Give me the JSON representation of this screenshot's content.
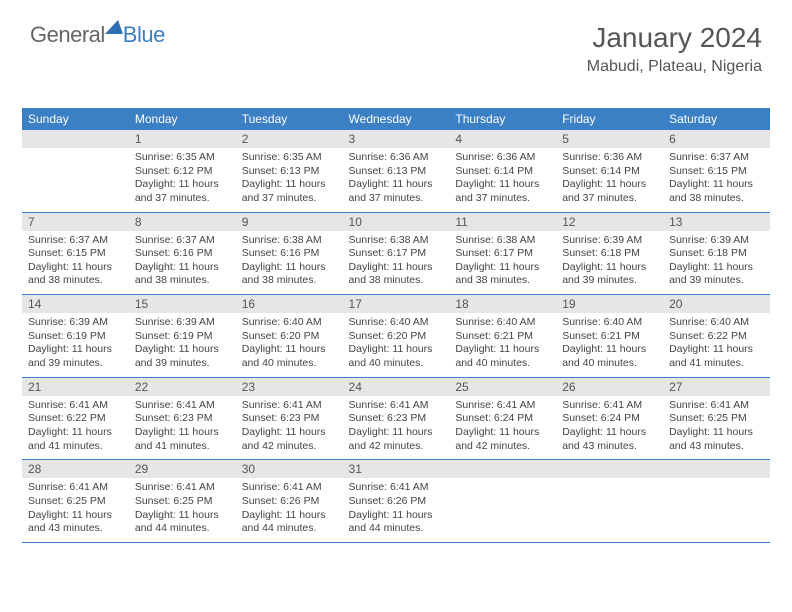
{
  "brand": {
    "part1": "General",
    "part2": "Blue"
  },
  "header": {
    "title": "January 2024",
    "location": "Mabudi, Plateau, Nigeria"
  },
  "colors": {
    "header_bg": "#3b7fc4",
    "header_text": "#ffffff",
    "daynum_bg": "#e6e6e6",
    "rule": "#3b7fc4",
    "text": "#444444",
    "title": "#555555"
  },
  "weekdays": [
    "Sunday",
    "Monday",
    "Tuesday",
    "Wednesday",
    "Thursday",
    "Friday",
    "Saturday"
  ],
  "first_weekday_index": 1,
  "days": [
    {
      "n": 1,
      "sunrise": "6:35 AM",
      "sunset": "6:12 PM",
      "daylight": "11 hours and 37 minutes."
    },
    {
      "n": 2,
      "sunrise": "6:35 AM",
      "sunset": "6:13 PM",
      "daylight": "11 hours and 37 minutes."
    },
    {
      "n": 3,
      "sunrise": "6:36 AM",
      "sunset": "6:13 PM",
      "daylight": "11 hours and 37 minutes."
    },
    {
      "n": 4,
      "sunrise": "6:36 AM",
      "sunset": "6:14 PM",
      "daylight": "11 hours and 37 minutes."
    },
    {
      "n": 5,
      "sunrise": "6:36 AM",
      "sunset": "6:14 PM",
      "daylight": "11 hours and 37 minutes."
    },
    {
      "n": 6,
      "sunrise": "6:37 AM",
      "sunset": "6:15 PM",
      "daylight": "11 hours and 38 minutes."
    },
    {
      "n": 7,
      "sunrise": "6:37 AM",
      "sunset": "6:15 PM",
      "daylight": "11 hours and 38 minutes."
    },
    {
      "n": 8,
      "sunrise": "6:37 AM",
      "sunset": "6:16 PM",
      "daylight": "11 hours and 38 minutes."
    },
    {
      "n": 9,
      "sunrise": "6:38 AM",
      "sunset": "6:16 PM",
      "daylight": "11 hours and 38 minutes."
    },
    {
      "n": 10,
      "sunrise": "6:38 AM",
      "sunset": "6:17 PM",
      "daylight": "11 hours and 38 minutes."
    },
    {
      "n": 11,
      "sunrise": "6:38 AM",
      "sunset": "6:17 PM",
      "daylight": "11 hours and 38 minutes."
    },
    {
      "n": 12,
      "sunrise": "6:39 AM",
      "sunset": "6:18 PM",
      "daylight": "11 hours and 39 minutes."
    },
    {
      "n": 13,
      "sunrise": "6:39 AM",
      "sunset": "6:18 PM",
      "daylight": "11 hours and 39 minutes."
    },
    {
      "n": 14,
      "sunrise": "6:39 AM",
      "sunset": "6:19 PM",
      "daylight": "11 hours and 39 minutes."
    },
    {
      "n": 15,
      "sunrise": "6:39 AM",
      "sunset": "6:19 PM",
      "daylight": "11 hours and 39 minutes."
    },
    {
      "n": 16,
      "sunrise": "6:40 AM",
      "sunset": "6:20 PM",
      "daylight": "11 hours and 40 minutes."
    },
    {
      "n": 17,
      "sunrise": "6:40 AM",
      "sunset": "6:20 PM",
      "daylight": "11 hours and 40 minutes."
    },
    {
      "n": 18,
      "sunrise": "6:40 AM",
      "sunset": "6:21 PM",
      "daylight": "11 hours and 40 minutes."
    },
    {
      "n": 19,
      "sunrise": "6:40 AM",
      "sunset": "6:21 PM",
      "daylight": "11 hours and 40 minutes."
    },
    {
      "n": 20,
      "sunrise": "6:40 AM",
      "sunset": "6:22 PM",
      "daylight": "11 hours and 41 minutes."
    },
    {
      "n": 21,
      "sunrise": "6:41 AM",
      "sunset": "6:22 PM",
      "daylight": "11 hours and 41 minutes."
    },
    {
      "n": 22,
      "sunrise": "6:41 AM",
      "sunset": "6:23 PM",
      "daylight": "11 hours and 41 minutes."
    },
    {
      "n": 23,
      "sunrise": "6:41 AM",
      "sunset": "6:23 PM",
      "daylight": "11 hours and 42 minutes."
    },
    {
      "n": 24,
      "sunrise": "6:41 AM",
      "sunset": "6:23 PM",
      "daylight": "11 hours and 42 minutes."
    },
    {
      "n": 25,
      "sunrise": "6:41 AM",
      "sunset": "6:24 PM",
      "daylight": "11 hours and 42 minutes."
    },
    {
      "n": 26,
      "sunrise": "6:41 AM",
      "sunset": "6:24 PM",
      "daylight": "11 hours and 43 minutes."
    },
    {
      "n": 27,
      "sunrise": "6:41 AM",
      "sunset": "6:25 PM",
      "daylight": "11 hours and 43 minutes."
    },
    {
      "n": 28,
      "sunrise": "6:41 AM",
      "sunset": "6:25 PM",
      "daylight": "11 hours and 43 minutes."
    },
    {
      "n": 29,
      "sunrise": "6:41 AM",
      "sunset": "6:25 PM",
      "daylight": "11 hours and 44 minutes."
    },
    {
      "n": 30,
      "sunrise": "6:41 AM",
      "sunset": "6:26 PM",
      "daylight": "11 hours and 44 minutes."
    },
    {
      "n": 31,
      "sunrise": "6:41 AM",
      "sunset": "6:26 PM",
      "daylight": "11 hours and 44 minutes."
    }
  ],
  "labels": {
    "sunrise": "Sunrise:",
    "sunset": "Sunset:",
    "daylight": "Daylight:"
  }
}
